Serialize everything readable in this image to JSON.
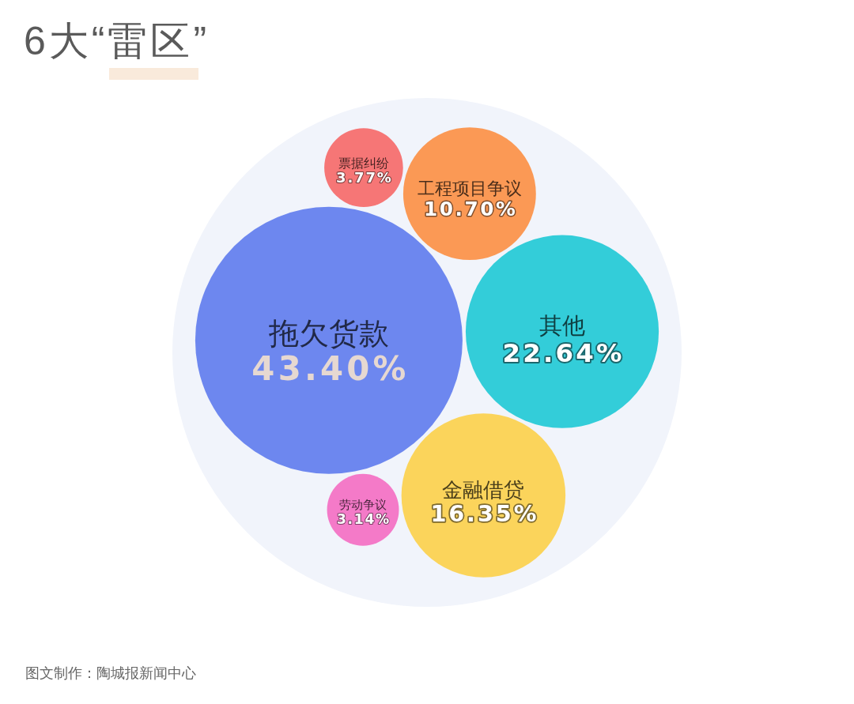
{
  "chart_data": {
    "type": "other",
    "title": "6大“雷区”",
    "categories": [
      "拖欠货款",
      "票据纠纷",
      "工程项目争议",
      "其他",
      "金融借贷",
      "劳动争议"
    ],
    "values": [
      43.4,
      3.77,
      10.7,
      22.64,
      16.35,
      3.14
    ],
    "value_labels": [
      "43.40%",
      "3.77%",
      "10.70%",
      "22.64%",
      "16.35%",
      "3.14%"
    ],
    "colors": [
      "#6d87ef",
      "#f67676",
      "#fb9955",
      "#33cdd9",
      "#fbd45b",
      "#f47ac8"
    ],
    "annotations": [
      "图文制作：陶城报新闻中心"
    ]
  }
}
